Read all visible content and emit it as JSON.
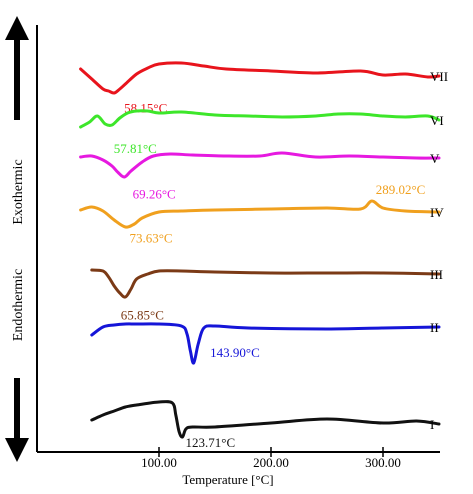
{
  "chart_data": {
    "type": "line",
    "title": "",
    "xlabel": "Temperature [°C]",
    "ylabel_top": "Exothermic",
    "ylabel_bottom": "Endothermic",
    "xlim": [
      0,
      380
    ],
    "x_ticks": [
      100,
      200,
      300
    ],
    "x_tick_labels": [
      "100.00",
      "200.00",
      "300.00"
    ],
    "grid": false,
    "legend": "right-end series labels",
    "series": [
      {
        "name": "VII",
        "color": "#e8141c",
        "x": [
          30,
          40,
          50,
          55,
          60,
          65,
          70,
          80,
          90,
          100,
          120,
          140,
          160,
          200,
          240,
          280,
          300,
          320,
          340,
          350
        ],
        "offset": [
          -7,
          3,
          13,
          15,
          17,
          13,
          8,
          -2,
          -8,
          -12,
          -13,
          -10,
          -7,
          -5,
          -3,
          -5,
          -1,
          -2,
          1,
          0
        ],
        "annotation": {
          "x": 58.15,
          "text": "58.15°C"
        }
      },
      {
        "name": "VI",
        "color": "#3de62a",
        "x": [
          30,
          38,
          45,
          52,
          58,
          65,
          72,
          80,
          90,
          100,
          120,
          150,
          180,
          210,
          240,
          260,
          280,
          300,
          320,
          340,
          350
        ],
        "offset": [
          7,
          2,
          -4,
          4,
          5,
          -2,
          -7,
          -9,
          -9,
          -7,
          -8,
          -5,
          -4,
          -3,
          -4,
          -6,
          -6,
          -4,
          -3,
          -4,
          0
        ],
        "annotation": {
          "x": 57.81,
          "text": "57.81°C"
        }
      },
      {
        "name": "V",
        "color": "#e619e0",
        "x": [
          30,
          40,
          50,
          58,
          63,
          69,
          75,
          85,
          95,
          110,
          130,
          160,
          190,
          210,
          240,
          270,
          300,
          330,
          350
        ],
        "offset": [
          -1,
          -2,
          2,
          8,
          14,
          19,
          13,
          4,
          -2,
          -4,
          -3,
          -2,
          -2,
          -5,
          -1,
          -2,
          -1,
          0,
          0
        ],
        "annotation": {
          "x": 69.26,
          "text": "69.26°C"
        }
      },
      {
        "name": "IV",
        "color": "#f0a01e",
        "x": [
          30,
          40,
          50,
          60,
          70,
          78,
          85,
          100,
          120,
          150,
          200,
          250,
          280,
          290,
          300,
          320,
          350
        ],
        "offset": [
          -12,
          -15,
          -11,
          -2,
          5,
          2,
          -4,
          -10,
          -11,
          -12,
          -13,
          -14,
          -13,
          -21,
          -14,
          -11,
          -10
        ],
        "annotation": {
          "x": 73.63,
          "text": "73.63°C"
        },
        "annotation2": {
          "x": 289.02,
          "text": "289.02°C"
        }
      },
      {
        "name": "III",
        "color": "#7b3a16",
        "x": [
          40,
          50,
          55,
          60,
          65,
          70,
          75,
          80,
          90,
          100,
          120,
          150,
          200,
          250,
          300,
          350
        ],
        "offset": [
          -9,
          -8,
          -2,
          7,
          14,
          18,
          10,
          0,
          -5,
          -8,
          -8,
          -7,
          -6,
          -6,
          -6,
          -5
        ],
        "annotation": {
          "x": 65.85,
          "text": "65.85°C"
        }
      },
      {
        "name": "II",
        "color": "#1515d8",
        "x": [
          40,
          50,
          60,
          70,
          80,
          100,
          120,
          125,
          128,
          131,
          135,
          140,
          150,
          180,
          250,
          300,
          350
        ],
        "offset": [
          -1,
          -9,
          -11,
          -12,
          -12,
          -12,
          -10,
          -2,
          15,
          27,
          8,
          -8,
          -10,
          -8,
          -7,
          -8,
          -9
        ],
        "annotation": {
          "x": 143.9,
          "text": "143.90°C"
        }
      },
      {
        "name": "I",
        "color": "#111111",
        "x": [
          40,
          50,
          60,
          70,
          80,
          100,
          112,
          115,
          118,
          121,
          124,
          130,
          150,
          200,
          250,
          300,
          330,
          350
        ],
        "offset": [
          3,
          -2,
          -6,
          -10,
          -12,
          -15,
          -14,
          -2,
          15,
          20,
          12,
          10,
          10,
          6,
          2,
          6,
          4,
          7
        ],
        "annotation": {
          "x": 123.71,
          "text": "123.71°C"
        }
      }
    ]
  }
}
